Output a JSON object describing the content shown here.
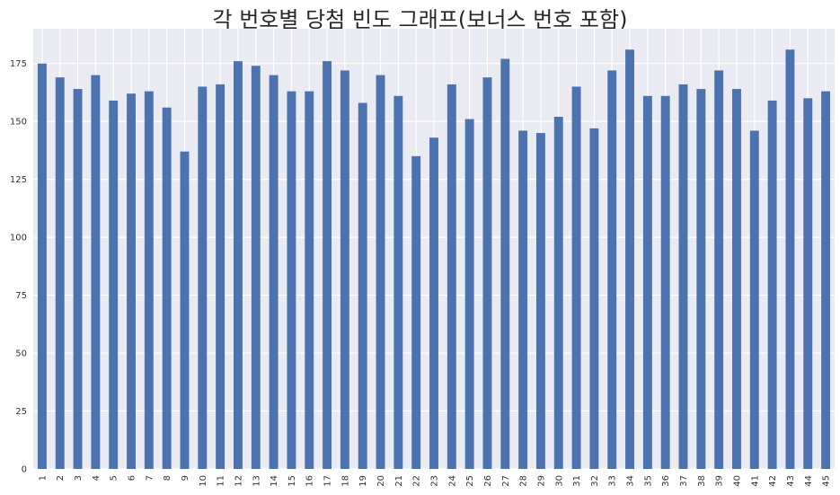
{
  "chart_data": {
    "type": "bar",
    "title": "각 번호별 당첨 빈도 그래프(보너스 번호 포함)",
    "xlabel": "",
    "ylabel": "",
    "categories": [
      "1",
      "2",
      "3",
      "4",
      "5",
      "6",
      "7",
      "8",
      "9",
      "10",
      "11",
      "12",
      "13",
      "14",
      "15",
      "16",
      "17",
      "18",
      "19",
      "20",
      "21",
      "22",
      "23",
      "24",
      "25",
      "26",
      "27",
      "28",
      "29",
      "30",
      "31",
      "32",
      "33",
      "34",
      "35",
      "36",
      "37",
      "38",
      "39",
      "40",
      "41",
      "42",
      "43",
      "44",
      "45"
    ],
    "values": [
      175,
      169,
      164,
      170,
      159,
      162,
      163,
      156,
      137,
      165,
      166,
      176,
      174,
      170,
      163,
      163,
      176,
      172,
      158,
      170,
      161,
      135,
      143,
      166,
      151,
      169,
      177,
      146,
      145,
      152,
      165,
      147,
      172,
      181,
      161,
      161,
      166,
      164,
      172,
      164,
      146,
      159,
      181,
      160,
      163
    ],
    "ylim": [
      0,
      190
    ],
    "yticks": [
      0,
      25,
      50,
      75,
      100,
      125,
      150,
      175
    ],
    "grid": true,
    "legend": "none",
    "colors": {
      "bar": "#4c72b0",
      "background": "#eaeaf2",
      "grid": "#ffffff"
    }
  }
}
